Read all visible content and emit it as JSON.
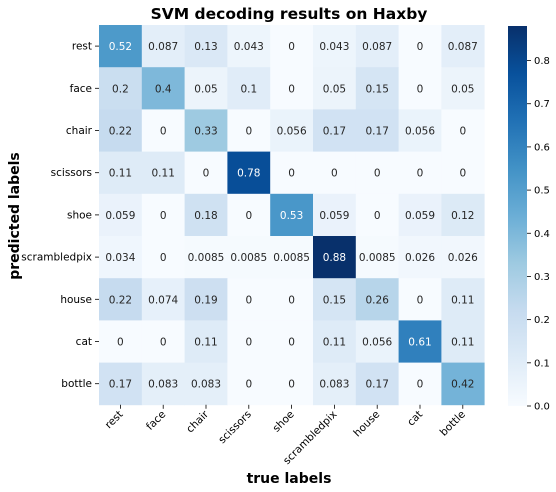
{
  "chart_data": {
    "type": "heatmap",
    "title": "SVM decoding results on Haxby",
    "xlabel": "true labels",
    "ylabel": "predicted labels",
    "x_categories": [
      "rest",
      "face",
      "chair",
      "scissors",
      "shoe",
      "scrambledpix",
      "house",
      "cat",
      "bottle"
    ],
    "y_categories": [
      "rest",
      "face",
      "chair",
      "scissors",
      "shoe",
      "scrambledpix",
      "house",
      "cat",
      "bottle"
    ],
    "values": [
      [
        0.52,
        0.087,
        0.13,
        0.043,
        0,
        0.043,
        0.087,
        0,
        0.087
      ],
      [
        0.2,
        0.4,
        0.05,
        0.1,
        0,
        0.05,
        0.15,
        0,
        0.05
      ],
      [
        0.22,
        0,
        0.33,
        0,
        0.056,
        0.17,
        0.17,
        0.056,
        0
      ],
      [
        0.11,
        0.11,
        0,
        0.78,
        0,
        0,
        0,
        0,
        0
      ],
      [
        0.059,
        0,
        0.18,
        0,
        0.53,
        0.059,
        0,
        0.059,
        0.12
      ],
      [
        0.034,
        0,
        0.0085,
        0.0085,
        0.0085,
        0.88,
        0.0085,
        0.026,
        0.026
      ],
      [
        0.22,
        0.074,
        0.19,
        0,
        0,
        0.15,
        0.26,
        0,
        0.11
      ],
      [
        0,
        0,
        0.11,
        0,
        0,
        0.11,
        0.056,
        0.61,
        0.11
      ],
      [
        0.17,
        0.083,
        0.083,
        0,
        0,
        0.083,
        0.17,
        0,
        0.42
      ]
    ],
    "colorbar": {
      "range": [
        0,
        0.88
      ],
      "ticks": [
        "0.0",
        "0.1",
        "0.2",
        "0.3",
        "0.4",
        "0.5",
        "0.6",
        "0.7",
        "0.8"
      ],
      "colormap": "Blues"
    }
  }
}
